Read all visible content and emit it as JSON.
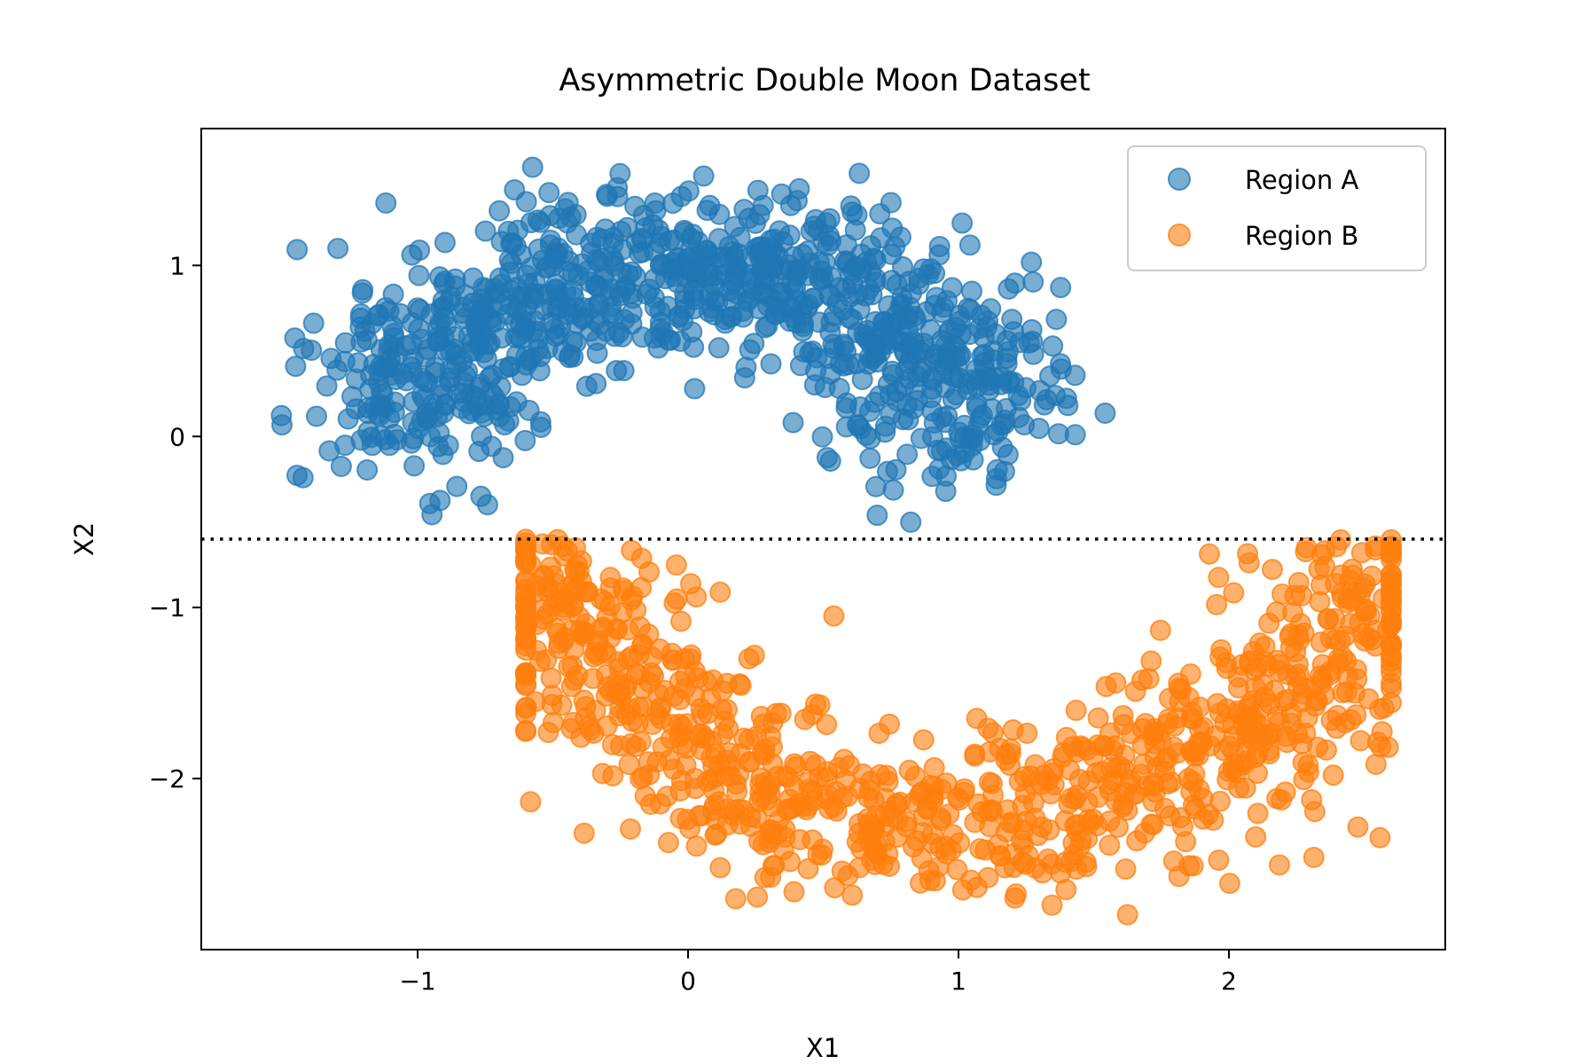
{
  "chart_data": {
    "type": "scatter",
    "title": "Asymmetric Double Moon Dataset",
    "xlabel": "X1",
    "ylabel": "X2",
    "xlim": [
      -1.8,
      2.8
    ],
    "ylim": [
      -3.0,
      1.8
    ],
    "xticks": [
      -1,
      0,
      1,
      2
    ],
    "yticks": [
      1,
      0,
      -1,
      -2
    ],
    "xtick_labels": [
      "−1",
      "0",
      "1",
      "2"
    ],
    "ytick_labels": [
      "1",
      "0",
      "−1",
      "−2"
    ],
    "grid": false,
    "legend_position": "top-right",
    "threshold_line": {
      "y": -0.6,
      "style": "dotted",
      "color": "#000000"
    },
    "series": [
      {
        "name": "Region A",
        "color": "#1f77b4",
        "alpha": 0.6,
        "shape": "upper moon",
        "x_range": [
          -1.6,
          1.6
        ],
        "y_range": [
          -0.6,
          1.6
        ],
        "center": [
          0.0,
          0.0
        ],
        "radius": 1.0,
        "noise": 0.25,
        "count": 1000
      },
      {
        "name": "Region B",
        "color": "#ff7f0e",
        "alpha": 0.6,
        "shape": "lower moon",
        "x_range": [
          -0.6,
          2.6
        ],
        "y_range": [
          -2.8,
          -0.6
        ],
        "center": [
          1.0,
          -0.6
        ],
        "radius": 1.5,
        "noise": 0.25,
        "count": 1000
      }
    ]
  }
}
